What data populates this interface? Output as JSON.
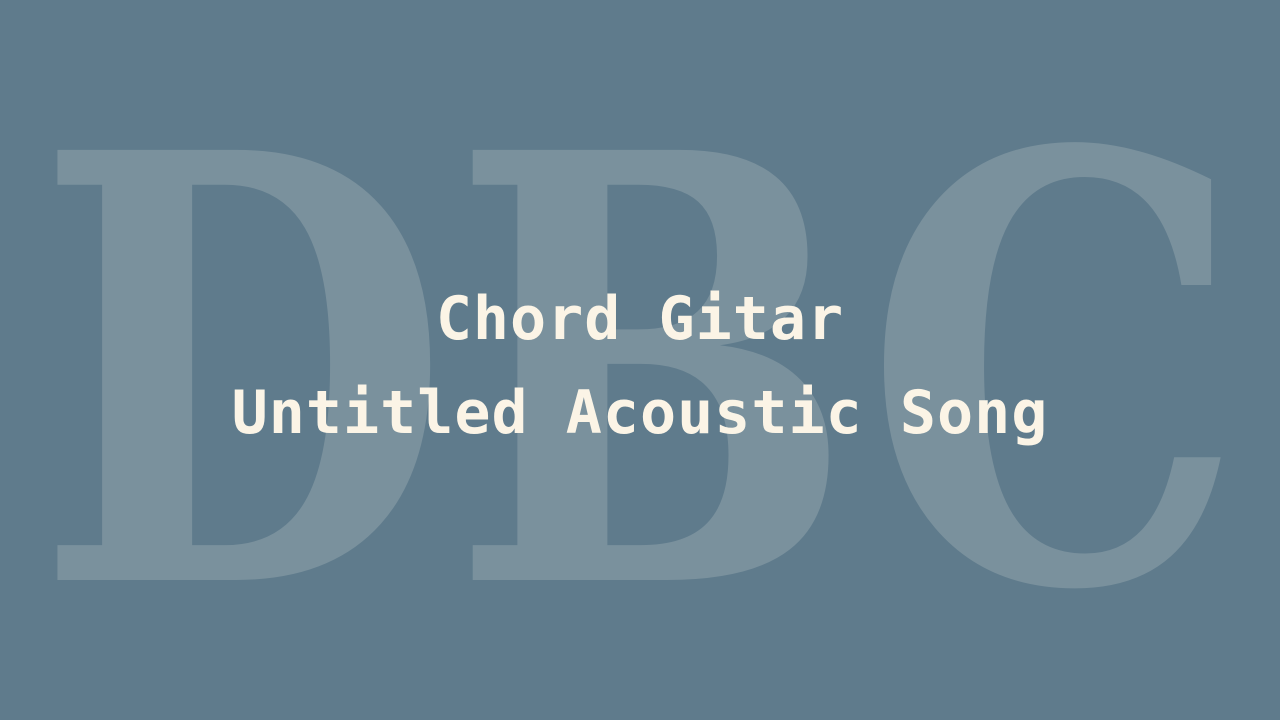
{
  "background_color": "#5f7b8c",
  "watermark": {
    "text": "DBC",
    "color": "#7a919d"
  },
  "title": {
    "line1": "Chord Gitar",
    "line2": "Untitled Acoustic Song",
    "color": "#fbf4e6"
  }
}
